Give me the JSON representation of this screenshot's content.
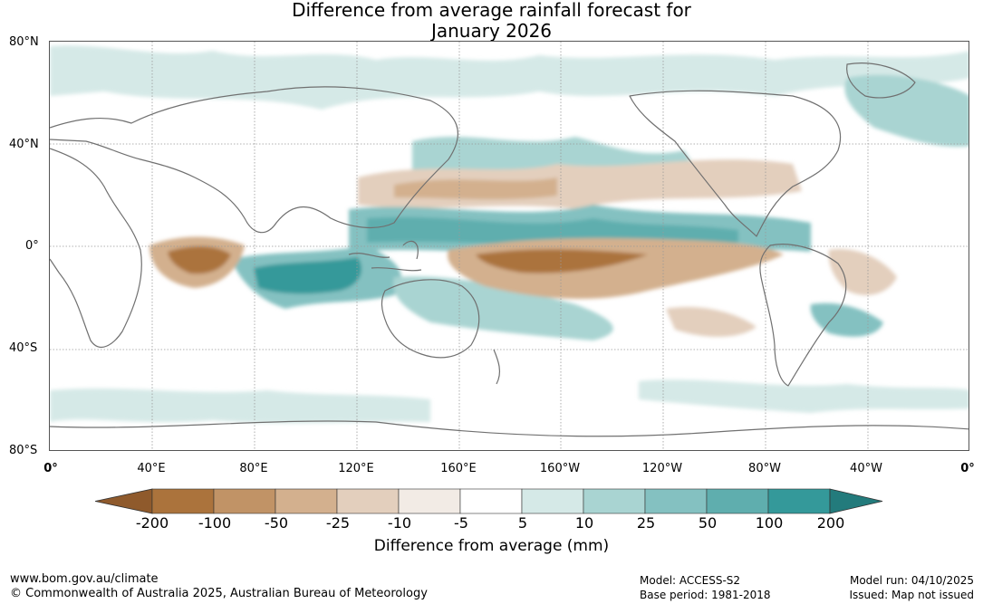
{
  "title": {
    "line1": "Difference from average rainfall forecast for",
    "line2": "January 2026"
  },
  "map": {
    "lat_labels": [
      "80°N",
      "40°N",
      "0°",
      "40°S",
      "80°S"
    ],
    "lat_values": [
      80,
      40,
      0,
      -40,
      -80
    ],
    "lon_labels": [
      "0°",
      "40°E",
      "80°E",
      "120°E",
      "160°E",
      "160°W",
      "120°W",
      "80°W",
      "40°W",
      "0°"
    ],
    "lon_values": [
      0,
      40,
      80,
      120,
      160,
      200,
      240,
      280,
      320,
      360
    ],
    "land_outline_color": "#707070",
    "grid_color": "#999999"
  },
  "colorbar": {
    "ticks": [
      "-200",
      "-100",
      "-50",
      "-25",
      "-10",
      "-5",
      "5",
      "10",
      "25",
      "50",
      "100",
      "200"
    ],
    "colors": [
      "#8f5a2c",
      "#ab733c",
      "#c19366",
      "#d3b08e",
      "#e3cfbd",
      "#f2ebe5",
      "#ffffff",
      "#d5e9e7",
      "#a9d4d2",
      "#84c1c1",
      "#5faeae",
      "#34999a",
      "#237b7c"
    ],
    "title": "Difference from average (mm)"
  },
  "footer": {
    "website": "www.bom.gov.au/climate",
    "copyright": "© Commonwealth of Australia 2025, Australian Bureau of Meteorology",
    "model": "Model: ACCESS-S2",
    "base_period": "Base period: 1981-2018",
    "model_run": "Model run: 04/10/2025",
    "issued": "Issued: Map not issued"
  }
}
